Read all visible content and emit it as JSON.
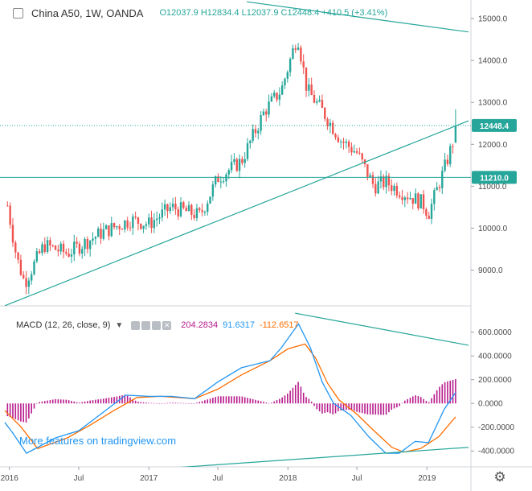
{
  "header": {
    "symbol": "China A50, 1W, OANDA",
    "ohlc": "O12037.9 H12834.4 L12037.9 C12448.4 +410.5 (+3.41%)"
  },
  "macd": {
    "label": "MACD (12, 26, close, 9)",
    "hist_value": "204.2834",
    "macd_value": "91.6317",
    "signal_value": "-112.6517"
  },
  "watermark": "More features on tradingview.com",
  "price_tags": {
    "last": "12448.4",
    "level": "11210.0"
  },
  "colors": {
    "up": "#26a69a",
    "down": "#ef5350",
    "trendline": "#26a69a",
    "macd_line": "#2196f3",
    "signal_line": "#ff6d00",
    "histogram": "#b71c8c",
    "last_tag": "#26a69a",
    "level_tag": "#26a69a",
    "watermark": "#2196f3"
  },
  "chart_data": [
    {
      "type": "candlestick",
      "title": "China A50, 1W, OANDA",
      "x_ticks": [
        "2016",
        "Jul",
        "2017",
        "Jul",
        "2018",
        "Jul",
        "2019"
      ],
      "y_ticks": [
        "9000.0",
        "10000.0",
        "11000.0",
        "12000.0",
        "13000.0",
        "14000.0",
        "15000.0"
      ],
      "ylim": [
        8300,
        15250
      ],
      "horizontal_lines": [
        12448.4,
        11210.0
      ],
      "trendlines": [
        {
          "from": [
            "2015-12-20",
            8150
          ],
          "to": [
            "2019-04-20",
            12560
          ]
        },
        {
          "from": [
            "2017-09-15",
            15400
          ],
          "to": [
            "2019-04-20",
            14680
          ]
        }
      ],
      "anchors": [
        [
          "2015-12-20",
          10900
        ],
        [
          "2016-01-20",
          9300
        ],
        [
          "2016-02-10",
          8700
        ],
        [
          "2016-04-01",
          9600
        ],
        [
          "2016-06-01",
          9400
        ],
        [
          "2016-09-01",
          9900
        ],
        [
          "2016-11-15",
          10200
        ],
        [
          "2017-01-01",
          10100
        ],
        [
          "2017-03-01",
          10500
        ],
        [
          "2017-05-15",
          10300
        ],
        [
          "2017-07-01",
          11200
        ],
        [
          "2017-09-01",
          11600
        ],
        [
          "2017-11-01",
          12800
        ],
        [
          "2017-12-15",
          13300
        ],
        [
          "2018-01-26",
          14600
        ],
        [
          "2018-02-20",
          13300
        ],
        [
          "2018-04-01",
          12800
        ],
        [
          "2018-05-20",
          12100
        ],
        [
          "2018-07-01",
          11800
        ],
        [
          "2018-08-15",
          11000
        ],
        [
          "2018-09-15",
          11100
        ],
        [
          "2018-10-20",
          10900
        ],
        [
          "2018-12-20",
          10600
        ],
        [
          "2019-01-05",
          10350
        ],
        [
          "2019-02-15",
          11400
        ],
        [
          "2019-03-10",
          12037.9
        ]
      ],
      "last_candle": {
        "date": "2019-03-17",
        "o": 12037.9,
        "h": 12834.4,
        "l": 12037.9,
        "c": 12448.4
      }
    },
    {
      "type": "macd",
      "title": "MACD (12, 26, close, 9)",
      "y_ticks": [
        "-400.0000",
        "-200.0000",
        "0.0000",
        "200.0000",
        "400.0000",
        "600.0000"
      ],
      "ylim": [
        -480,
        720
      ],
      "trendlines": [
        {
          "from": [
            "2018-01-20",
            760
          ],
          "to": [
            "2019-04-20",
            490
          ]
        },
        {
          "from": [
            "2016-12-15",
            -560
          ],
          "to": [
            "2019-04-20",
            -370
          ]
        }
      ],
      "macd_anchors": [
        [
          "2015-12-20",
          -160
        ],
        [
          "2016-01-10",
          -250
        ],
        [
          "2016-02-15",
          -420
        ],
        [
          "2016-05-01",
          -290
        ],
        [
          "2016-07-01",
          -230
        ],
        [
          "2016-09-01",
          -80
        ],
        [
          "2016-11-01",
          70
        ],
        [
          "2017-01-01",
          60
        ],
        [
          "2017-03-01",
          60
        ],
        [
          "2017-05-01",
          40
        ],
        [
          "2017-07-01",
          180
        ],
        [
          "2017-09-01",
          300
        ],
        [
          "2017-11-15",
          360
        ],
        [
          "2017-12-15",
          470
        ],
        [
          "2018-01-29",
          670
        ],
        [
          "2018-03-01",
          470
        ],
        [
          "2018-04-01",
          180
        ],
        [
          "2018-05-01",
          0
        ],
        [
          "2018-06-15",
          -100
        ],
        [
          "2018-08-01",
          -280
        ],
        [
          "2018-09-15",
          -420
        ],
        [
          "2018-10-20",
          -420
        ],
        [
          "2018-12-01",
          -320
        ],
        [
          "2019-01-05",
          -330
        ],
        [
          "2019-02-15",
          -50
        ],
        [
          "2019-03-17",
          92
        ]
      ],
      "signal_anchors": [
        [
          "2015-12-20",
          -60
        ],
        [
          "2016-02-01",
          -200
        ],
        [
          "2016-03-15",
          -380
        ],
        [
          "2016-06-01",
          -290
        ],
        [
          "2016-08-01",
          -180
        ],
        [
          "2016-10-01",
          -60
        ],
        [
          "2016-12-01",
          50
        ],
        [
          "2017-02-01",
          60
        ],
        [
          "2017-05-01",
          40
        ],
        [
          "2017-07-01",
          120
        ],
        [
          "2017-09-01",
          240
        ],
        [
          "2017-11-15",
          360
        ],
        [
          "2018-01-01",
          460
        ],
        [
          "2018-02-15",
          500
        ],
        [
          "2018-03-15",
          380
        ],
        [
          "2018-04-15",
          170
        ],
        [
          "2018-05-15",
          30
        ],
        [
          "2018-07-01",
          -90
        ],
        [
          "2018-08-15",
          -230
        ],
        [
          "2018-10-01",
          -370
        ],
        [
          "2018-11-01",
          -410
        ],
        [
          "2018-12-15",
          -380
        ],
        [
          "2019-02-01",
          -280
        ],
        [
          "2019-03-17",
          -113
        ]
      ]
    }
  ]
}
